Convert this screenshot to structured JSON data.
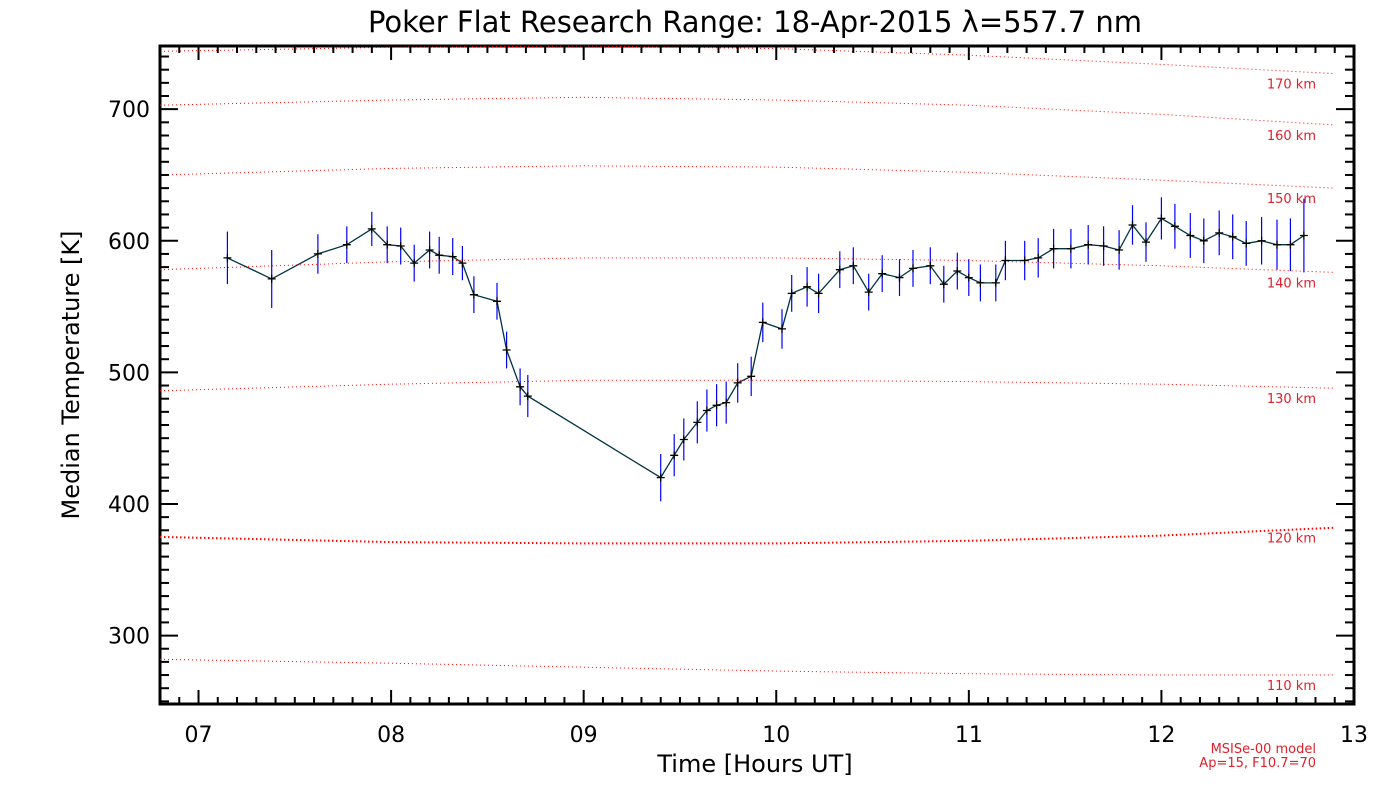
{
  "chart_data": {
    "type": "line",
    "title": "Poker Flat Research Range: 18-Apr-2015 λ=557.7 nm",
    "xlabel": "Time [Hours UT]",
    "ylabel": "Median Temperature [K]",
    "xlim": [
      6.8,
      13.0
    ],
    "ylim": [
      248,
      748
    ],
    "x_ticks": [
      7,
      8,
      9,
      10,
      11,
      12,
      13
    ],
    "x_tick_labels": [
      "07",
      "08",
      "09",
      "10",
      "11",
      "12",
      "13"
    ],
    "y_ticks": [
      300,
      400,
      500,
      600,
      700
    ],
    "y_tick_labels": [
      "300",
      "400",
      "500",
      "600",
      "700"
    ],
    "grid": false,
    "colors": {
      "line": "#003344",
      "marker": "#000000",
      "error_bar": "#0000ff",
      "model": "#ff0000",
      "model_label": "#e0202a"
    },
    "series": [
      {
        "x": [
          7.15,
          7.38,
          7.62,
          7.77,
          7.9,
          7.98,
          8.05,
          8.12,
          8.2,
          8.25,
          8.32,
          8.37,
          8.43,
          8.55,
          8.6,
          8.67,
          8.71,
          9.4,
          9.47,
          9.52,
          9.59,
          9.64,
          9.69,
          9.74,
          9.8,
          9.87,
          9.93,
          10.03,
          10.08,
          10.16,
          10.22,
          10.33,
          10.4,
          10.48,
          10.55,
          10.64,
          10.71,
          10.8,
          10.87,
          10.94,
          11.0,
          11.06,
          11.14,
          11.19,
          11.29,
          11.36,
          11.44,
          11.53,
          11.62,
          11.7,
          11.78,
          11.85,
          11.92,
          12.0,
          12.07,
          12.15,
          12.22,
          12.3,
          12.37,
          12.44,
          12.52,
          12.6,
          12.67,
          12.74
        ],
        "values": [
          587,
          571,
          590,
          597,
          609,
          597,
          596,
          583,
          593,
          589,
          588,
          583,
          559,
          554,
          517,
          489,
          482,
          420,
          437,
          449,
          462,
          471,
          475,
          477,
          492,
          497,
          538,
          533,
          560,
          565,
          560,
          578,
          581,
          561,
          575,
          572,
          579,
          581,
          567,
          577,
          572,
          568,
          568,
          585,
          585,
          587,
          594,
          594,
          597,
          596,
          593,
          612,
          599,
          617,
          611,
          604,
          600,
          606,
          603,
          598,
          600,
          597,
          597,
          604
        ],
        "errors": [
          20,
          22,
          15,
          14,
          13,
          14,
          14,
          14,
          14,
          14,
          14,
          13,
          14,
          14,
          14,
          14,
          16,
          18,
          16,
          16,
          16,
          16,
          16,
          16,
          15,
          15,
          15,
          15,
          14,
          15,
          15,
          14,
          14,
          14,
          14,
          14,
          14,
          14,
          14,
          14,
          14,
          14,
          14,
          15,
          15,
          15,
          15,
          15,
          15,
          15,
          15,
          15,
          15,
          16,
          17,
          17,
          17,
          17,
          17,
          17,
          18,
          19,
          20,
          28
        ]
      }
    ],
    "model_curves": [
      {
        "label": "110 km",
        "x": [
          6.8,
          8.0,
          9.0,
          10.0,
          11.0,
          12.0,
          12.9
        ],
        "values": [
          282,
          279,
          276,
          273,
          271,
          270,
          270
        ]
      },
      {
        "label": "120 km",
        "x": [
          6.8,
          8.0,
          9.0,
          10.0,
          11.0,
          12.0,
          12.9
        ],
        "values": [
          375,
          371,
          370,
          370,
          372,
          376,
          382
        ]
      },
      {
        "label": "130 km",
        "x": [
          6.8,
          8.0,
          9.0,
          10.0,
          11.0,
          12.0,
          12.9
        ],
        "values": [
          486,
          491,
          494,
          494,
          493,
          491,
          488
        ]
      },
      {
        "label": "140 km",
        "x": [
          6.8,
          8.0,
          9.0,
          10.0,
          11.0,
          12.0,
          12.9
        ],
        "values": [
          578,
          584,
          587,
          587,
          585,
          581,
          576
        ]
      },
      {
        "label": "150 km",
        "x": [
          6.8,
          8.0,
          9.0,
          10.0,
          11.0,
          12.0,
          12.9
        ],
        "values": [
          650,
          655,
          657,
          656,
          652,
          646,
          640
        ]
      },
      {
        "label": "160 km",
        "x": [
          6.8,
          8.0,
          9.0,
          10.0,
          11.0,
          12.0,
          12.9
        ],
        "values": [
          703,
          707,
          709,
          707,
          703,
          696,
          688
        ]
      },
      {
        "label": "170 km",
        "x": [
          6.8,
          8.0,
          9.0,
          10.0,
          11.0,
          12.0,
          12.9
        ],
        "values": [
          744,
          747,
          748,
          746,
          741,
          734,
          727
        ]
      }
    ],
    "model_note_lines": [
      "MSISe-00 model",
      "Ap=15, F10.7=70"
    ]
  }
}
